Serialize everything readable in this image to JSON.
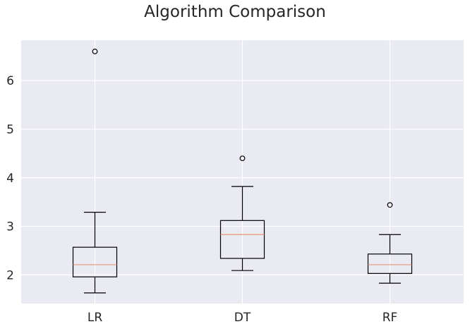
{
  "chart_data": {
    "type": "boxplot",
    "title": "Algorithm Comparison",
    "xlabel": "",
    "ylabel": "",
    "categories": [
      "LR",
      "DT",
      "RF"
    ],
    "boxes": [
      {
        "name": "LR",
        "whisker_low": 1.63,
        "q1": 1.96,
        "median": 2.21,
        "q3": 2.57,
        "whisker_high": 3.29,
        "outliers": [
          6.6
        ]
      },
      {
        "name": "DT",
        "whisker_low": 2.09,
        "q1": 2.34,
        "median": 2.83,
        "q3": 3.12,
        "whisker_high": 3.82,
        "outliers": [
          4.4
        ]
      },
      {
        "name": "RF",
        "whisker_low": 1.83,
        "q1": 2.03,
        "median": 2.21,
        "q3": 2.43,
        "whisker_high": 2.83,
        "outliers": [
          3.44
        ]
      }
    ],
    "yticks": [
      "2",
      "3",
      "4",
      "5",
      "6"
    ],
    "ylim": [
      1.41,
      6.83
    ],
    "grid": true,
    "colors": {
      "background": "#eaeaf2",
      "grid": "#ffffff",
      "box": "#000000",
      "median": "#e8967a",
      "text": "#262626"
    }
  }
}
